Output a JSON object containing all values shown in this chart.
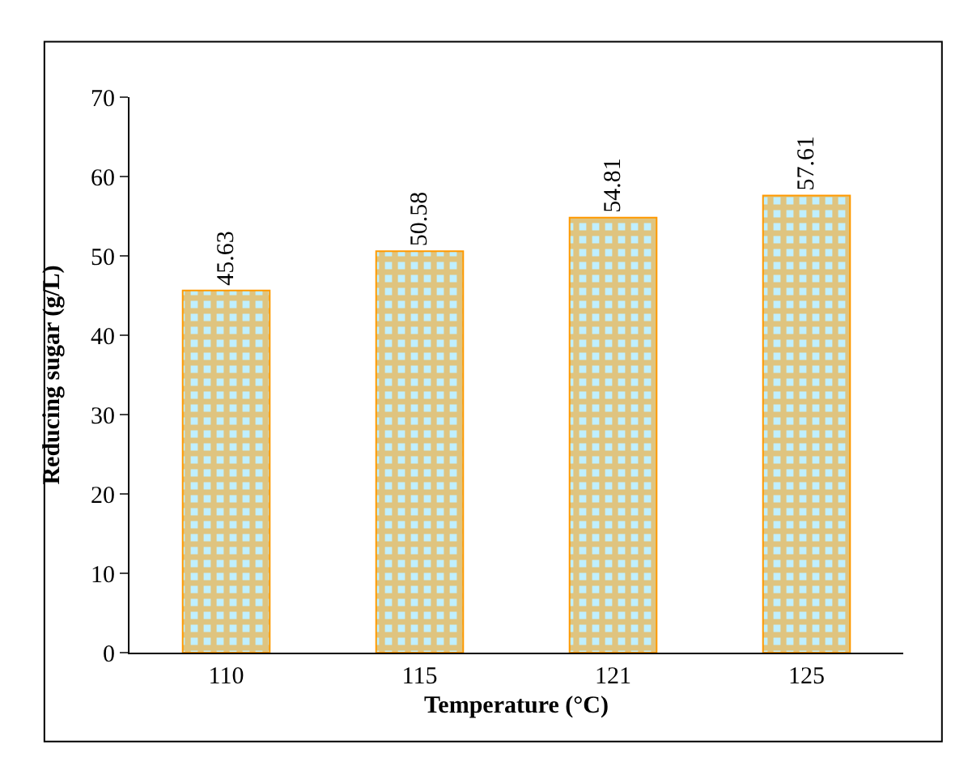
{
  "chart_data": {
    "type": "bar",
    "xlabel": "Temperature (°C)",
    "ylabel": "Reducing sugar (g/L)",
    "categories": [
      "110",
      "115",
      "121",
      "125"
    ],
    "values": [
      45.63,
      50.58,
      54.81,
      57.61
    ],
    "color": "#ff9900",
    "ylim": [
      0,
      70
    ],
    "yticks": [
      0,
      10,
      20,
      30,
      40,
      50,
      60,
      70
    ],
    "data_labels": true
  }
}
